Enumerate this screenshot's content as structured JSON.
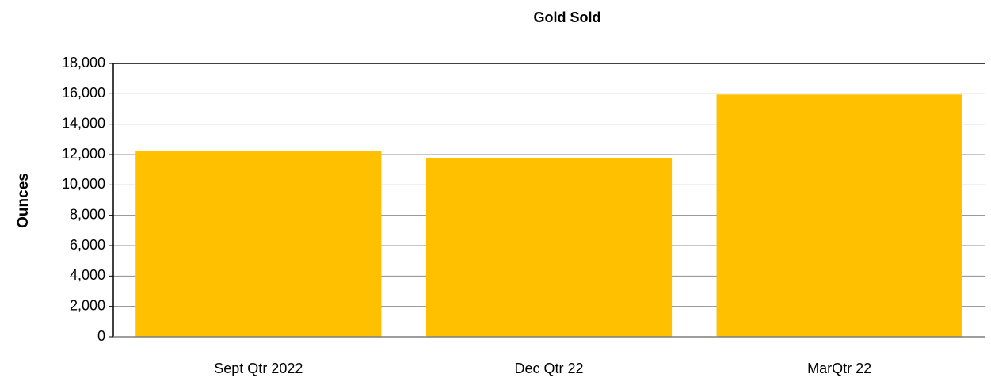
{
  "chart_data": {
    "type": "bar",
    "title": "Gold Sold",
    "y_label": "Ounces",
    "categories": [
      "Sept Qtr 2022",
      "Dec Qtr 22",
      "MarQtr 22"
    ],
    "values": [
      12250,
      11750,
      15950
    ],
    "color": "#ffc000",
    "ylim": [
      0,
      18000
    ],
    "yticks": [
      0,
      {
        "value": 2000,
        "label": "2,000"
      },
      {
        "value": 4000,
        "label": "4,000"
      },
      {
        "value": 6000,
        "label": "6,000"
      },
      {
        "value": 8000,
        "label": "8,000"
      },
      {
        "value": 10000,
        "label": "10,000"
      },
      {
        "value": 12000,
        "label": "12,000"
      },
      {
        "value": 14000,
        "label": "14,000"
      },
      {
        "value": 16000,
        "label": "16,000"
      },
      {
        "value": 18000,
        "label": "18,000"
      }
    ],
    "grid": true
  }
}
